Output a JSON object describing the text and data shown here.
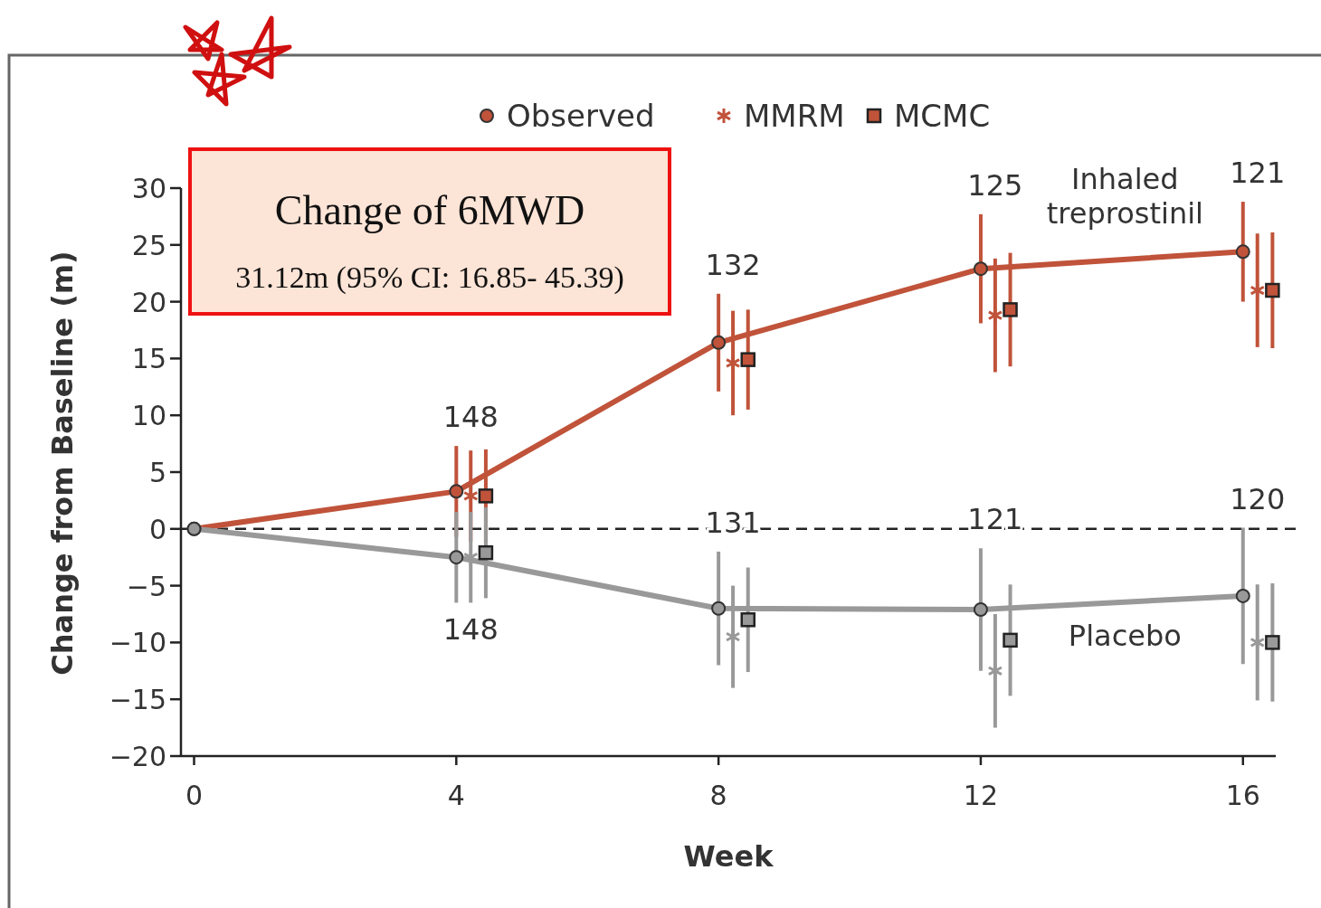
{
  "chart_data": {
    "type": "line",
    "xlabel": "Week",
    "ylabel": "Change from Baseline (m)",
    "xlim": [
      -0.2,
      16.5
    ],
    "xticks": [
      0,
      4,
      8,
      12,
      16
    ],
    "ylim": [
      -20,
      30
    ],
    "yticks": [
      {
        "value": -20,
        "label": "−20"
      },
      {
        "value": -15,
        "label": "−15"
      },
      {
        "value": -10,
        "label": "−10"
      },
      {
        "value": -5,
        "label": "−5"
      },
      0,
      5,
      10,
      15,
      20,
      25,
      30
    ],
    "legend": "top",
    "ref_lines": [
      {
        "axis": "y",
        "value": 0,
        "color": "#222222",
        "line_style": "dashed"
      }
    ],
    "series": [
      {
        "name": "Observed",
        "marker": "circle",
        "color": "#c0533a",
        "x": [
          0,
          4,
          8,
          12,
          16
        ],
        "values": [
          0,
          3.3,
          16.4,
          22.9,
          24.4
        ],
        "errors": [
          null,
          4,
          4.3,
          4.8,
          4.4
        ]
      },
      {
        "name": "MMRM",
        "type": "scatter",
        "marker": "cross",
        "color": "#c0533a",
        "x": [
          4.22,
          8.22,
          12.22,
          16.22
        ],
        "values": [
          2.9,
          14.6,
          18.8,
          21.0
        ],
        "errors": [
          4,
          4.6,
          5,
          5
        ]
      },
      {
        "name": "MCMC",
        "type": "scatter",
        "marker": "square",
        "color": "#c0533a",
        "x": [
          4.45,
          8.45,
          12.45,
          16.45
        ],
        "values": [
          2.9,
          14.9,
          19.3,
          21.0
        ],
        "errors": [
          4.1,
          4.4,
          5,
          5.1
        ]
      },
      {
        "marker": "circle",
        "color": "#999999",
        "x": [
          0,
          4,
          8,
          12,
          16
        ],
        "values": [
          0,
          -2.5,
          -7.0,
          -7.1,
          -5.9
        ],
        "errors": [
          null,
          4,
          5,
          5.4,
          6
        ]
      },
      {
        "type": "scatter",
        "marker": "cross",
        "color": "#999999",
        "x": [
          4.22,
          8.22,
          12.22,
          16.22
        ],
        "values": [
          -2.5,
          -9.5,
          -12.5,
          -10.0
        ],
        "errors": [
          4,
          4.5,
          5,
          5.1
        ]
      },
      {
        "type": "scatter",
        "marker": "square",
        "color": "#999999",
        "x": [
          4.45,
          8.45,
          12.45,
          16.45
        ],
        "values": [
          -2.1,
          -8.0,
          -9.8,
          -10.0
        ],
        "errors": [
          4,
          4.6,
          4.9,
          5.2
        ]
      }
    ],
    "annotations": [
      "Change of 6MWD",
      "31.12m (95% CI: 16.85- 45.39)",
      {
        "text": "148",
        "x": 4,
        "y": 3.3
      },
      {
        "text": "132",
        "x": 8,
        "y": 16.4
      },
      {
        "text": "125",
        "x": 12,
        "y": 22.9
      },
      {
        "text": "121",
        "x": 16,
        "y": 24.4
      },
      {
        "text": "148",
        "x": 4,
        "y": -2.5
      },
      {
        "text": "131",
        "x": 8,
        "y": -7.0
      },
      {
        "text": "121",
        "x": 12,
        "y": -7.1
      },
      {
        "text": "120",
        "x": 16,
        "y": -5.9
      },
      {
        "text": "Inhaled treprostinil",
        "x": 14.2,
        "y": 23.7
      },
      {
        "text": "Placebo",
        "x": 14.2,
        "y": -6.4
      }
    ]
  }
}
